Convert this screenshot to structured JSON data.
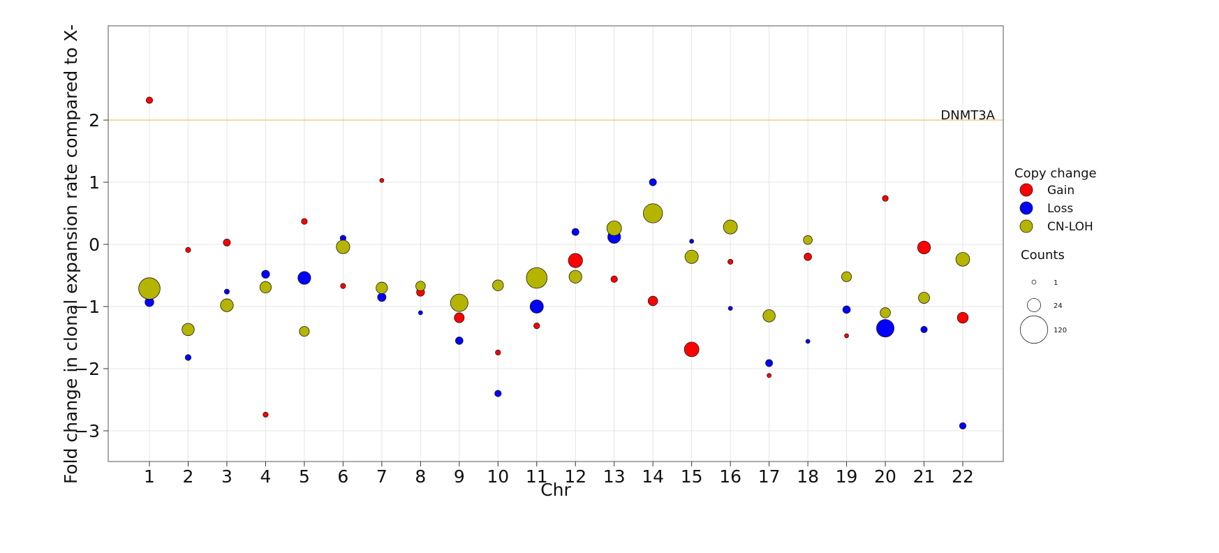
{
  "chart_data": {
    "type": "scatter",
    "title": "",
    "xlabel": "Chr",
    "ylabel": "Fold change in clonal expansion rate compared to X-",
    "categories": [
      "1",
      "2",
      "3",
      "4",
      "5",
      "6",
      "7",
      "8",
      "9",
      "10",
      "11",
      "12",
      "13",
      "14",
      "15",
      "16",
      "17",
      "18",
      "19",
      "20",
      "21",
      "22"
    ],
    "yticks": [
      -3,
      -2,
      -1,
      0,
      1,
      2
    ],
    "ylim": [
      -3.5,
      3.5
    ],
    "grid": true,
    "reference_line": {
      "y": 2,
      "label": "DNMT3A",
      "color": "#f5c58a"
    },
    "legend": {
      "placement": "right",
      "color_title": "Copy change",
      "size_title": "Counts",
      "size_levels": [
        {
          "label": "1",
          "value": 1
        },
        {
          "label": "24",
          "value": 24
        },
        {
          "label": "120",
          "value": 120
        }
      ]
    },
    "series": [
      {
        "name": "Gain",
        "color": "#ff0000",
        "points": [
          {
            "chr": 1,
            "y": 2.32,
            "count": 4
          },
          {
            "chr": 2,
            "y": -0.09,
            "count": 2
          },
          {
            "chr": 3,
            "y": 0.03,
            "count": 5
          },
          {
            "chr": 4,
            "y": -2.74,
            "count": 2
          },
          {
            "chr": 5,
            "y": 0.37,
            "count": 3
          },
          {
            "chr": 6,
            "y": -0.67,
            "count": 2
          },
          {
            "chr": 7,
            "y": 1.03,
            "count": 1
          },
          {
            "chr": 8,
            "y": -0.77,
            "count": 7
          },
          {
            "chr": 9,
            "y": -1.18,
            "count": 12
          },
          {
            "chr": 10,
            "y": -1.74,
            "count": 2
          },
          {
            "chr": 11,
            "y": -1.31,
            "count": 3
          },
          {
            "chr": 12,
            "y": -0.26,
            "count": 28
          },
          {
            "chr": 13,
            "y": -0.56,
            "count": 4
          },
          {
            "chr": 14,
            "y": -0.91,
            "count": 11
          },
          {
            "chr": 15,
            "y": -1.69,
            "count": 30
          },
          {
            "chr": 16,
            "y": -0.28,
            "count": 2
          },
          {
            "chr": 17,
            "y": -2.11,
            "count": 1
          },
          {
            "chr": 18,
            "y": -0.2,
            "count": 6
          },
          {
            "chr": 19,
            "y": -1.47,
            "count": 1
          },
          {
            "chr": 20,
            "y": 0.74,
            "count": 3
          },
          {
            "chr": 21,
            "y": -0.05,
            "count": 22
          },
          {
            "chr": 22,
            "y": -1.18,
            "count": 15
          }
        ]
      },
      {
        "name": "Loss",
        "color": "#0000ff",
        "points": [
          {
            "chr": 1,
            "y": -0.93,
            "count": 9
          },
          {
            "chr": 2,
            "y": -1.82,
            "count": 3
          },
          {
            "chr": 3,
            "y": -0.76,
            "count": 2
          },
          {
            "chr": 4,
            "y": -0.48,
            "count": 7
          },
          {
            "chr": 5,
            "y": -0.54,
            "count": 22
          },
          {
            "chr": 6,
            "y": 0.1,
            "count": 3
          },
          {
            "chr": 7,
            "y": -0.85,
            "count": 8
          },
          {
            "chr": 8,
            "y": -1.1,
            "count": 1
          },
          {
            "chr": 9,
            "y": -1.55,
            "count": 6
          },
          {
            "chr": 10,
            "y": -2.4,
            "count": 4
          },
          {
            "chr": 11,
            "y": -1.0,
            "count": 24
          },
          {
            "chr": 12,
            "y": 0.2,
            "count": 5
          },
          {
            "chr": 13,
            "y": 0.12,
            "count": 22
          },
          {
            "chr": 14,
            "y": 1.0,
            "count": 5
          },
          {
            "chr": 15,
            "y": 0.05,
            "count": 1
          },
          {
            "chr": 16,
            "y": -1.03,
            "count": 1
          },
          {
            "chr": 17,
            "y": -1.91,
            "count": 5
          },
          {
            "chr": 18,
            "y": -1.56,
            "count": 1
          },
          {
            "chr": 19,
            "y": -1.05,
            "count": 6
          },
          {
            "chr": 20,
            "y": -1.35,
            "count": 45
          },
          {
            "chr": 21,
            "y": -1.37,
            "count": 4
          },
          {
            "chr": 22,
            "y": -2.92,
            "count": 4
          }
        ]
      },
      {
        "name": "CN-LOH",
        "color": "#b5b500",
        "points": [
          {
            "chr": 1,
            "y": -0.71,
            "count": 70
          },
          {
            "chr": 2,
            "y": -1.37,
            "count": 20
          },
          {
            "chr": 3,
            "y": -0.98,
            "count": 22
          },
          {
            "chr": 4,
            "y": -0.69,
            "count": 17
          },
          {
            "chr": 5,
            "y": -1.4,
            "count": 12
          },
          {
            "chr": 6,
            "y": -0.04,
            "count": 25
          },
          {
            "chr": 7,
            "y": -0.7,
            "count": 17
          },
          {
            "chr": 8,
            "y": -0.67,
            "count": 11
          },
          {
            "chr": 9,
            "y": -0.94,
            "count": 45
          },
          {
            "chr": 10,
            "y": -0.66,
            "count": 15
          },
          {
            "chr": 11,
            "y": -0.54,
            "count": 65
          },
          {
            "chr": 12,
            "y": -0.52,
            "count": 22
          },
          {
            "chr": 13,
            "y": 0.26,
            "count": 30
          },
          {
            "chr": 14,
            "y": 0.5,
            "count": 55
          },
          {
            "chr": 15,
            "y": -0.2,
            "count": 24
          },
          {
            "chr": 16,
            "y": 0.28,
            "count": 27
          },
          {
            "chr": 17,
            "y": -1.15,
            "count": 20
          },
          {
            "chr": 18,
            "y": 0.07,
            "count": 9
          },
          {
            "chr": 19,
            "y": -0.52,
            "count": 12
          },
          {
            "chr": 20,
            "y": -1.1,
            "count": 13
          },
          {
            "chr": 21,
            "y": -0.86,
            "count": 16
          },
          {
            "chr": 22,
            "y": -0.24,
            "count": 26
          }
        ]
      }
    ]
  }
}
